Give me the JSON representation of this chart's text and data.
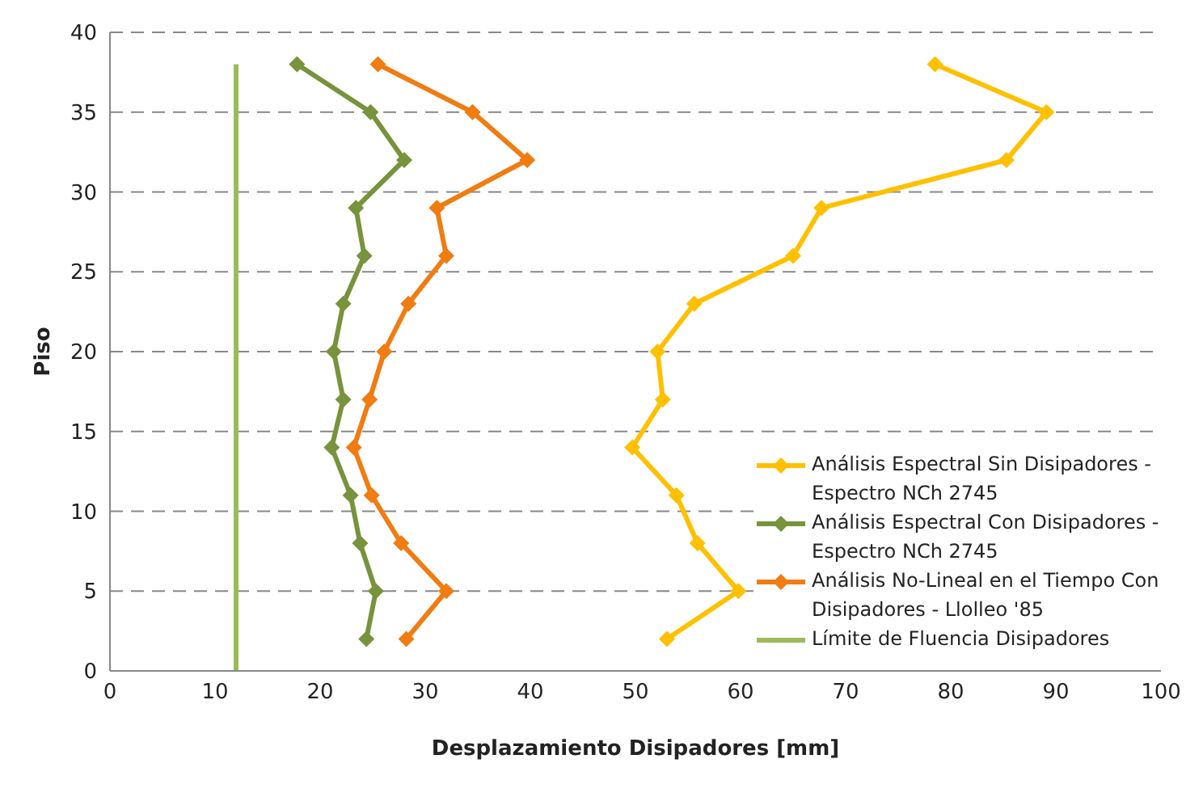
{
  "chart_data": {
    "type": "line",
    "xlabel": "Desplazamiento Disipadores [mm]",
    "ylabel": "Piso",
    "xlim": [
      0,
      100
    ],
    "xticks": [
      0,
      10,
      20,
      30,
      40,
      50,
      60,
      70,
      80,
      90,
      100
    ],
    "ylim": [
      0,
      40
    ],
    "yticks": [
      0,
      5,
      10,
      15,
      20,
      25,
      30,
      35,
      40
    ],
    "grid": "y",
    "legend": "bottom right",
    "marker": "diamond",
    "series": [
      {
        "name": "Análisis Espectral Sin Disipadores - Espectro NCh 2745",
        "color": "#ffc000",
        "x": [
          78.5,
          89.1,
          85.3,
          67.7,
          65.0,
          55.6,
          52.1,
          52.6,
          49.7,
          53.9,
          55.9,
          59.8,
          53.0
        ],
        "values": [
          38,
          35,
          32,
          29,
          26,
          23,
          20,
          17,
          14,
          11,
          8,
          5,
          2
        ]
      },
      {
        "name": "Análisis Espectral Con Disipadores - Espectro NCh 2745",
        "color": "#77933c",
        "x": [
          17.8,
          24.8,
          28.0,
          23.4,
          24.2,
          22.2,
          21.3,
          22.2,
          21.1,
          22.9,
          23.8,
          25.3,
          24.4
        ],
        "values": [
          38,
          35,
          32,
          29,
          26,
          23,
          20,
          17,
          14,
          11,
          8,
          5,
          2
        ]
      },
      {
        "name": "Análisis No-Lineal en el Tiempo Con Disipadores - Llolleo '85",
        "color": "#f07c12",
        "x": [
          25.5,
          34.5,
          39.7,
          31.1,
          32.0,
          28.4,
          26.1,
          24.7,
          23.2,
          24.9,
          27.7,
          32.0,
          28.2
        ],
        "values": [
          38,
          35,
          32,
          29,
          26,
          23,
          20,
          17,
          14,
          11,
          8,
          5,
          2
        ]
      },
      {
        "name": "Límite de Fluencia Disipadores",
        "color": "#9bbb59",
        "marker": "none",
        "x": [
          12,
          12
        ],
        "values": [
          38,
          0
        ]
      }
    ]
  }
}
